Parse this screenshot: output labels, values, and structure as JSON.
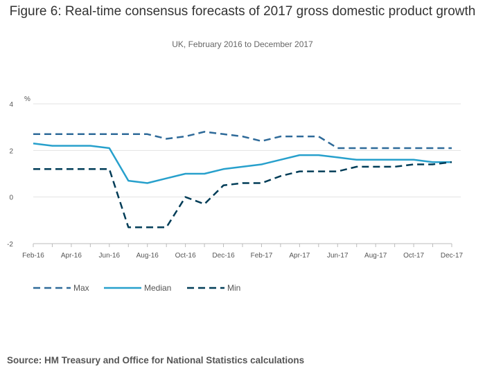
{
  "chart_data": {
    "type": "line",
    "title": "Figure 6: Real-time consensus forecasts of 2017 gross domestic product growth",
    "subtitle": "UK, February 2016 to December 2017",
    "ylabel": "%",
    "xlabel": "",
    "ylim": [
      -2,
      4
    ],
    "yticks": [
      4,
      2,
      0,
      -2
    ],
    "categories": [
      "Feb-16",
      "Mar-16",
      "Apr-16",
      "May-16",
      "Jun-16",
      "Jul-16",
      "Aug-16",
      "Sep-16",
      "Oct-16",
      "Nov-16",
      "Dec-16",
      "Jan-17",
      "Feb-17",
      "Mar-17",
      "Apr-17",
      "May-17",
      "Jun-17",
      "Jul-17",
      "Aug-17",
      "Sep-17",
      "Oct-17",
      "Nov-17",
      "Dec-17"
    ],
    "xtick_labels": [
      "Feb-16",
      "Apr-16",
      "Jun-16",
      "Aug-16",
      "Oct-16",
      "Dec-16",
      "Feb-17",
      "Apr-17",
      "Jun-17",
      "Aug-17",
      "Oct-17",
      "Dec-17"
    ],
    "series": [
      {
        "name": "Max",
        "style": "dashed",
        "color": "#2e6a99",
        "values": [
          2.7,
          2.7,
          2.7,
          2.7,
          2.7,
          2.7,
          2.7,
          2.5,
          2.6,
          2.8,
          2.7,
          2.6,
          2.4,
          2.6,
          2.6,
          2.6,
          2.1,
          2.1,
          2.1,
          2.1,
          2.1,
          2.1,
          2.1
        ]
      },
      {
        "name": "Median",
        "style": "solid",
        "color": "#27a0cc",
        "values": [
          2.3,
          2.2,
          2.2,
          2.2,
          2.1,
          0.7,
          0.6,
          0.8,
          1.0,
          1.0,
          1.2,
          1.3,
          1.4,
          1.6,
          1.8,
          1.8,
          1.7,
          1.6,
          1.6,
          1.6,
          1.6,
          1.5,
          1.5
        ]
      },
      {
        "name": "Min",
        "style": "dashed",
        "color": "#003c57",
        "values": [
          1.2,
          1.2,
          1.2,
          1.2,
          1.2,
          -1.3,
          -1.3,
          -1.3,
          0.0,
          -0.3,
          0.5,
          0.6,
          0.6,
          0.9,
          1.1,
          1.1,
          1.1,
          1.3,
          1.3,
          1.3,
          1.4,
          1.4,
          1.5
        ]
      }
    ],
    "grid": true,
    "legend_position": "bottom-left"
  },
  "source": "Source: HM Treasury and Office for National Statistics calculations"
}
